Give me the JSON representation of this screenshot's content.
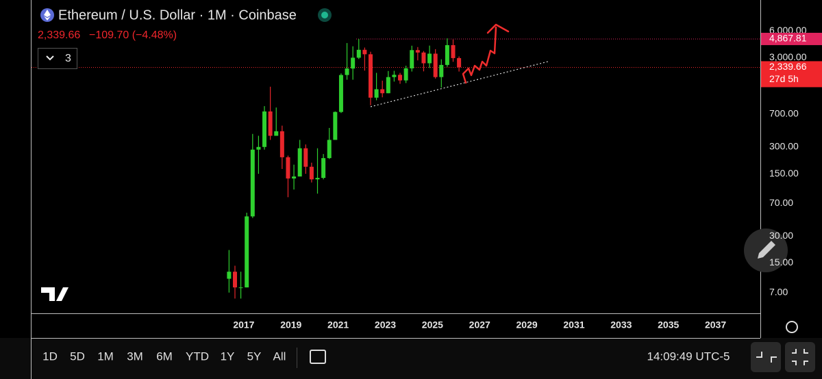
{
  "header": {
    "title": "Ethereum / U.S. Dollar · 1M · Coinbase",
    "price": "2,339.66",
    "change": "−109.70 (−4.48%)",
    "indicator_count": 3
  },
  "toolbar": {
    "intervals": [
      "1D",
      "5D",
      "1M",
      "3M",
      "6M",
      "YTD",
      "1Y",
      "5Y",
      "All"
    ],
    "time": "14:09:49 UTC-5"
  },
  "chart_data": {
    "type": "candlestick",
    "log_scale": true,
    "up_color": "#2fd12f",
    "down_color": "#e8262b",
    "xlim": [
      2008,
      2038.9
    ],
    "xticks": [
      2017,
      2019,
      2021,
      2023,
      2025,
      2027,
      2029,
      2031,
      2033,
      2035,
      2037
    ],
    "ylim": [
      4.1,
      13300
    ],
    "yticks": [
      {
        "value": 7,
        "label": "7.00"
      },
      {
        "value": 15,
        "label": "15.00"
      },
      {
        "value": 30,
        "label": "30.00"
      },
      {
        "value": 70,
        "label": "70.00"
      },
      {
        "value": 150,
        "label": "150.00"
      },
      {
        "value": 300,
        "label": "300.00"
      },
      {
        "value": 700,
        "label": "700.00"
      },
      {
        "value": 3000,
        "label": "3,000.00"
      },
      {
        "value": 6000,
        "label": "6,000.00"
      }
    ],
    "price_labels": [
      {
        "value": 4867.81,
        "label": "4,867.81",
        "color": "#e0245e"
      },
      {
        "value": 2339.66,
        "label": "2,339.66",
        "color": "#f0262c"
      }
    ],
    "countdown": "27d 5h",
    "x": [
      2016.375,
      2016.625,
      2016.875,
      2017.125,
      2017.375,
      2017.625,
      2017.875,
      2018.125,
      2018.375,
      2018.625,
      2018.875,
      2019.125,
      2019.375,
      2019.625,
      2019.875,
      2020.125,
      2020.375,
      2020.625,
      2020.875,
      2021.125,
      2021.375,
      2021.625,
      2021.875,
      2022.125,
      2022.375,
      2022.625,
      2022.875,
      2023.125,
      2023.375,
      2023.625,
      2023.875,
      2024.125,
      2024.375,
      2024.625,
      2024.875,
      2025.125,
      2025.375,
      2025.625,
      2025.875,
      2026.125
    ],
    "open": [
      10,
      12,
      8,
      8,
      50,
      280,
      300,
      750,
      400,
      450,
      230,
      133,
      140,
      290,
      180,
      130,
      135,
      225,
      360,
      740,
      1920,
      2270,
      3000,
      3680,
      3280,
      1070,
      1330,
      1200,
      1820,
      1930,
      1670,
      2280,
      3650,
      3430,
      2600,
      3330,
      1820,
      2490,
      4150,
      2970
    ],
    "high": [
      21,
      14,
      12,
      55,
      420,
      400,
      860,
      1420,
      830,
      520,
      240,
      190,
      360,
      320,
      200,
      290,
      250,
      490,
      750,
      2000,
      4380,
      4030,
      4870,
      3900,
      3500,
      2030,
      1660,
      2130,
      2140,
      2030,
      2440,
      4090,
      3950,
      3560,
      4100,
      3740,
      2880,
      4950,
      4800,
      3100
    ],
    "low": [
      7,
      6,
      6,
      8,
      48,
      150,
      280,
      360,
      400,
      170,
      82,
      100,
      140,
      150,
      120,
      90,
      130,
      220,
      360,
      720,
      1700,
      1700,
      2900,
      2150,
      880,
      1000,
      1080,
      1200,
      1620,
      1530,
      1560,
      2100,
      2800,
      2110,
      2300,
      1750,
      1390,
      2370,
      2700,
      2100
    ],
    "close": [
      12,
      8,
      8,
      50,
      280,
      300,
      750,
      400,
      450,
      230,
      133,
      140,
      290,
      180,
      130,
      135,
      225,
      360,
      740,
      1920,
      2270,
      3000,
      3680,
      3280,
      1070,
      1330,
      1200,
      1820,
      1930,
      1670,
      2280,
      3650,
      3430,
      2600,
      3330,
      1820,
      2490,
      4150,
      2970,
      2339.66
    ]
  }
}
